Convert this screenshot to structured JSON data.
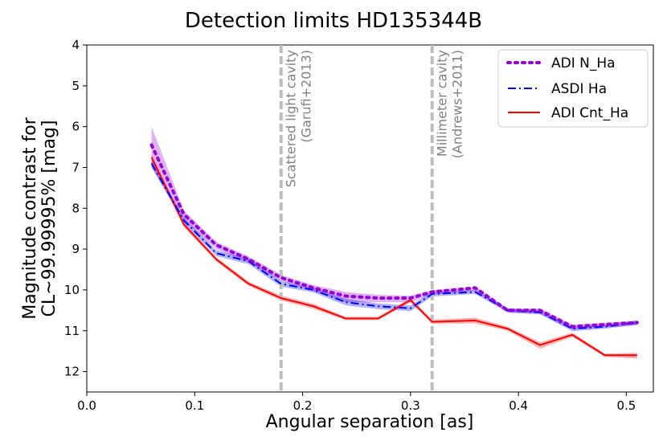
{
  "chart_data": {
    "type": "line",
    "title": "Detection limits HD135344B",
    "xlabel": "Angular separation [as]",
    "ylabel_line1": "Magnitude contrast for",
    "ylabel_line2": "CL~99.99995% [mag]",
    "xlim": [
      0.0,
      0.525
    ],
    "ylim": [
      12.5,
      4.0
    ],
    "xticks": [
      0.0,
      0.1,
      0.2,
      0.3,
      0.4,
      0.5
    ],
    "xtick_labels": [
      "0.0",
      "0.1",
      "0.2",
      "0.3",
      "0.4",
      "0.5"
    ],
    "yticks": [
      4,
      5,
      6,
      7,
      8,
      9,
      10,
      11,
      12
    ],
    "ytick_labels": [
      "4",
      "5",
      "6",
      "7",
      "8",
      "9",
      "10",
      "11",
      "12"
    ],
    "x": [
      0.06,
      0.09,
      0.12,
      0.15,
      0.18,
      0.21,
      0.24,
      0.27,
      0.3,
      0.32,
      0.36,
      0.39,
      0.42,
      0.45,
      0.48,
      0.51
    ],
    "series": [
      {
        "name": "ADI N_Ha",
        "color": "#9400d3",
        "style": "dotted",
        "values": [
          6.45,
          8.15,
          8.9,
          9.25,
          9.7,
          9.95,
          10.15,
          10.2,
          10.2,
          10.05,
          9.95,
          10.5,
          10.5,
          10.9,
          10.85,
          10.8
        ],
        "band_lower": [
          6.0,
          8.05,
          8.82,
          9.18,
          9.63,
          9.88,
          10.05,
          10.12,
          10.14,
          10.0,
          9.92,
          10.45,
          10.45,
          10.85,
          10.8,
          10.75
        ],
        "band_upper": [
          7.0,
          8.3,
          9.0,
          9.33,
          9.78,
          10.03,
          10.3,
          10.3,
          10.3,
          10.12,
          10.02,
          10.56,
          10.58,
          10.97,
          10.92,
          10.86
        ]
      },
      {
        "name": "ASDI Ha",
        "color": "#0000ff",
        "style": "dashdot",
        "values": [
          6.9,
          8.3,
          9.1,
          9.3,
          9.85,
          10.0,
          10.3,
          10.4,
          10.45,
          10.1,
          10.05,
          10.5,
          10.55,
          10.95,
          10.9,
          10.8
        ],
        "band_lower": [
          6.82,
          8.22,
          9.03,
          9.23,
          9.78,
          9.94,
          10.22,
          10.33,
          10.38,
          10.04,
          10.0,
          10.45,
          10.5,
          10.89,
          10.85,
          10.75
        ],
        "band_upper": [
          6.98,
          8.38,
          9.17,
          9.37,
          9.92,
          10.06,
          10.38,
          10.47,
          10.52,
          10.16,
          10.1,
          10.55,
          10.6,
          11.01,
          10.95,
          10.86
        ]
      },
      {
        "name": "ADI Cnt_Ha",
        "color": "#ff0000",
        "style": "solid",
        "values": [
          6.75,
          8.4,
          9.25,
          9.85,
          10.2,
          10.4,
          10.7,
          10.7,
          10.25,
          10.78,
          10.75,
          10.95,
          11.35,
          11.1,
          11.6,
          11.6
        ],
        "band_lower": [
          6.68,
          8.34,
          9.2,
          9.8,
          10.14,
          10.34,
          10.66,
          10.66,
          10.2,
          10.73,
          10.68,
          10.9,
          11.28,
          11.05,
          11.56,
          11.54
        ],
        "band_upper": [
          6.82,
          8.46,
          9.3,
          9.9,
          10.26,
          10.46,
          10.74,
          10.74,
          10.3,
          10.83,
          10.82,
          11.0,
          11.44,
          11.15,
          11.64,
          11.68
        ]
      }
    ],
    "vlines": [
      {
        "x": 0.18,
        "label_line1": "Scattered light cavity",
        "label_line2": "(Garufi+2013)"
      },
      {
        "x": 0.32,
        "label_line1": "Millimeter cavity",
        "label_line2": "(Andrews+2011)"
      }
    ],
    "legend_position": "top-right",
    "vline_color": "#bdbdbd",
    "annotation_color": "#808080"
  }
}
